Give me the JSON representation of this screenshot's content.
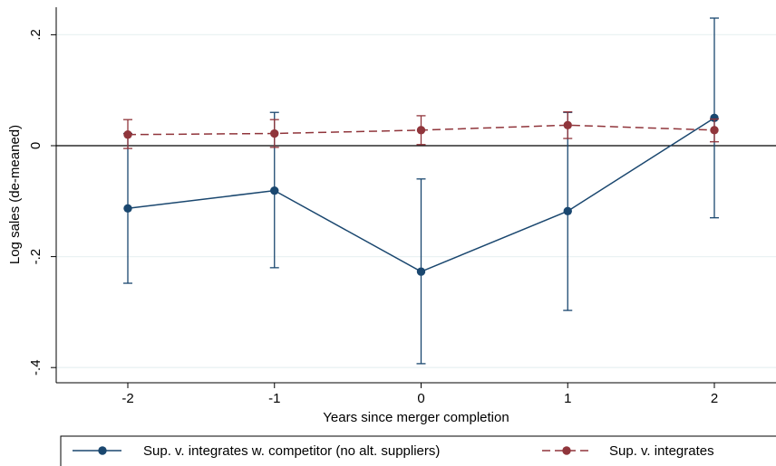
{
  "chart_data": {
    "type": "line",
    "xlabel": "Years since merger completion",
    "ylabel": "Log sales (de-meaned)",
    "x": [
      -2,
      -1,
      0,
      1,
      2
    ],
    "x_ticks": [
      "-2",
      "-1",
      "0",
      "1",
      "2"
    ],
    "xlim": [
      -2.45,
      2.45
    ],
    "y_ticks": [
      0.2,
      0,
      -0.2,
      -0.4
    ],
    "y_tick_labels": [
      ".2",
      "0",
      "-.2",
      "-.4"
    ],
    "ylim": [
      -0.42,
      0.25
    ],
    "grid": "horizontal",
    "reference_line_y": 0,
    "legend_position": "bottom",
    "series": [
      {
        "name": "Sup. v. integrates w. competitor (no alt. suppliers)",
        "color": "#1a476f",
        "line_style": "solid",
        "marker": "circle",
        "values": [
          -0.113,
          -0.081,
          -0.227,
          -0.118,
          0.05
        ],
        "ci_low": [
          -0.248,
          -0.22,
          -0.393,
          -0.297,
          -0.13
        ],
        "ci_high": [
          0.022,
          0.06,
          -0.06,
          0.06,
          0.23
        ]
      },
      {
        "name": "Sup. v. integrates",
        "color": "#90353b",
        "line_style": "dashed",
        "marker": "circle",
        "values": [
          0.02,
          0.022,
          0.028,
          0.037,
          0.028
        ],
        "ci_low": [
          -0.005,
          -0.003,
          0.002,
          0.013,
          0.007
        ],
        "ci_high": [
          0.047,
          0.047,
          0.054,
          0.061,
          0.048
        ]
      }
    ]
  }
}
